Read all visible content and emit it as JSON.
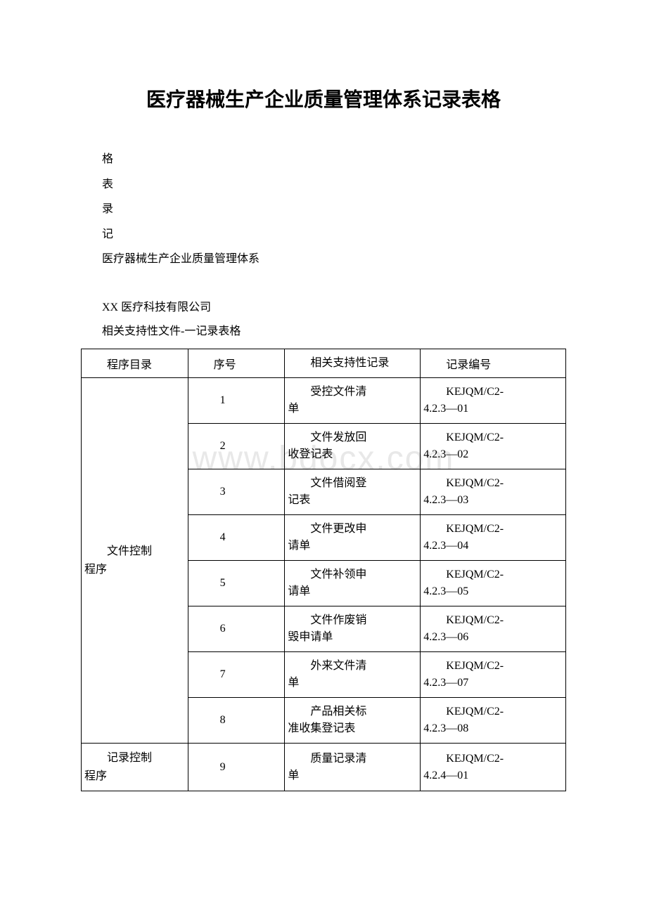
{
  "title": "医疗器械生产企业质量管理体系记录表格",
  "vertical_lines": [
    "格",
    "表",
    "录",
    "记"
  ],
  "subtitle": "医疗器械生产企业质量管理体系",
  "company": "XX 医疗科技有限公司",
  "doc_desc": "相关支持性文件-一记录表格",
  "watermark": "www.bdocx.com",
  "headers": {
    "program": "程序目录",
    "seq": "序号",
    "record": "相关支持性记录",
    "code": "记录编号"
  },
  "table": {
    "groups": [
      {
        "program": "文件控制程序",
        "rows": [
          {
            "seq": "1",
            "record": "受控文件清单",
            "code": "KEJQM/C2-4.2.3—01"
          },
          {
            "seq": "2",
            "record": "文件发放回收登记表",
            "code": "KEJQM/C2-4.2.3—02"
          },
          {
            "seq": "3",
            "record": "文件借阅登记表",
            "code": "KEJQM/C2-4.2.3—03"
          },
          {
            "seq": "4",
            "record": "文件更改申请单",
            "code": "KEJQM/C2-4.2.3—04"
          },
          {
            "seq": "5",
            "record": "文件补领申请单",
            "code": "KEJQM/C2-4.2.3—05"
          },
          {
            "seq": "6",
            "record": "文件作废销毁申请单",
            "code": "KEJQM/C2-4.2.3—06"
          },
          {
            "seq": "7",
            "record": "外来文件清单",
            "code": "KEJQM/C2-4.2.3—07"
          },
          {
            "seq": "8",
            "record": "产品相关标准收集登记表",
            "code": "KEJQM/C2-4.2.3—08"
          }
        ]
      },
      {
        "program": "记录控制程序",
        "rows": [
          {
            "seq": "9",
            "record": "质量记录清单",
            "code": "KEJQM/C2-4.2.4—01"
          }
        ]
      }
    ]
  }
}
